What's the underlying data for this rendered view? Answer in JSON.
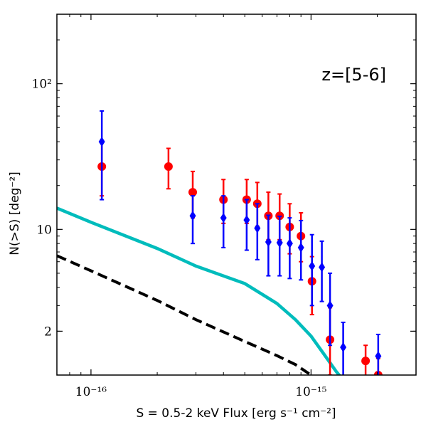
{
  "chart_data": {
    "type": "scatter",
    "title": "",
    "annotation": "z=[5-6]",
    "xlabel": "S = 0.5-2 keV Flux [erg s⁻¹ cm⁻²]",
    "ylabel": "N(>S) [deg⁻²]",
    "xscale": "log",
    "yscale": "log",
    "xlim": [
      7e-17,
      3e-15
    ],
    "ylim": [
      1,
      300
    ],
    "x_ticks": [
      {
        "value": 1e-16,
        "label": "10⁻¹⁶"
      },
      {
        "value": 1e-15,
        "label": "10⁻¹⁵"
      }
    ],
    "y_ticks": [
      {
        "value": 2,
        "label": "2"
      },
      {
        "value": 10,
        "label": "10"
      },
      {
        "value": 100,
        "label": "10²"
      }
    ],
    "series": [
      {
        "marker": "circle",
        "color": "#ff0000",
        "points": [
          {
            "x": 1.12e-16,
            "y": 27,
            "lo": 17,
            "hi": 40
          },
          {
            "x": 2.25e-16,
            "y": 27,
            "lo": 19,
            "hi": 36
          },
          {
            "x": 2.9e-16,
            "y": 18,
            "lo": 12,
            "hi": 25
          },
          {
            "x": 4e-16,
            "y": 16,
            "lo": 11,
            "hi": 22
          },
          {
            "x": 5.1e-16,
            "y": 16,
            "lo": 11,
            "hi": 22
          },
          {
            "x": 5.7e-16,
            "y": 15,
            "lo": 10.5,
            "hi": 21
          },
          {
            "x": 6.4e-16,
            "y": 12.4,
            "lo": 8.5,
            "hi": 18
          },
          {
            "x": 7.2e-16,
            "y": 12.4,
            "lo": 8.5,
            "hi": 17.5
          },
          {
            "x": 8e-16,
            "y": 10.4,
            "lo": 6.8,
            "hi": 15
          },
          {
            "x": 9e-16,
            "y": 9.0,
            "lo": 6.0,
            "hi": 13
          },
          {
            "x": 1.01e-15,
            "y": 4.4,
            "lo": 2.6,
            "hi": 6.5
          },
          {
            "x": 1.22e-15,
            "y": 1.75,
            "lo": 1.0,
            "hi": 2.9
          },
          {
            "x": 1.77e-15,
            "y": 1.25,
            "lo": 0.8,
            "hi": 1.6
          },
          {
            "x": 2.02e-15,
            "y": 1.0,
            "lo": 0.7,
            "hi": 1.3
          }
        ]
      },
      {
        "marker": "diamond",
        "color": "#0000ff",
        "points": [
          {
            "x": 1.12e-16,
            "y": 40,
            "lo": 16,
            "hi": 65
          },
          {
            "x": 2.9e-16,
            "y": 12.4,
            "lo": 8,
            "hi": 17
          },
          {
            "x": 4e-16,
            "y": 12,
            "lo": 7.5,
            "hi": 17
          },
          {
            "x": 5.1e-16,
            "y": 11.6,
            "lo": 7.2,
            "hi": 16
          },
          {
            "x": 5.7e-16,
            "y": 10.2,
            "lo": 6.2,
            "hi": 15
          },
          {
            "x": 6.4e-16,
            "y": 8.2,
            "lo": 4.8,
            "hi": 12.5
          },
          {
            "x": 7.2e-16,
            "y": 8.1,
            "lo": 4.8,
            "hi": 12.3
          },
          {
            "x": 8e-16,
            "y": 8.0,
            "lo": 4.6,
            "hi": 12
          },
          {
            "x": 9e-16,
            "y": 7.5,
            "lo": 4.5,
            "hi": 11.5
          },
          {
            "x": 1.01e-15,
            "y": 5.6,
            "lo": 3.0,
            "hi": 9.2
          },
          {
            "x": 1.12e-15,
            "y": 5.5,
            "lo": 3.2,
            "hi": 8.3
          },
          {
            "x": 1.22e-15,
            "y": 3.0,
            "lo": 1.6,
            "hi": 5.0
          },
          {
            "x": 1.4e-15,
            "y": 1.55,
            "lo": 0.6,
            "hi": 2.3
          },
          {
            "x": 2.02e-15,
            "y": 1.35,
            "lo": 0.7,
            "hi": 1.9
          }
        ]
      },
      {
        "type": "line",
        "style": "solid",
        "color": "#00bcbc",
        "points": [
          {
            "x": 7e-17,
            "y": 14
          },
          {
            "x": 1e-16,
            "y": 11.2
          },
          {
            "x": 2e-16,
            "y": 7.4
          },
          {
            "x": 3e-16,
            "y": 5.6
          },
          {
            "x": 5e-16,
            "y": 4.25
          },
          {
            "x": 7e-16,
            "y": 3.1
          },
          {
            "x": 8.5e-16,
            "y": 2.4
          },
          {
            "x": 1e-15,
            "y": 1.85
          },
          {
            "x": 1.15e-15,
            "y": 1.38
          },
          {
            "x": 1.3e-15,
            "y": 1.06
          },
          {
            "x": 1.38e-15,
            "y": 0.95
          }
        ]
      },
      {
        "type": "line",
        "style": "dashed",
        "color": "#000000",
        "points": [
          {
            "x": 7e-17,
            "y": 6.6
          },
          {
            "x": 1e-16,
            "y": 5.2
          },
          {
            "x": 2e-16,
            "y": 3.25
          },
          {
            "x": 3e-16,
            "y": 2.4
          },
          {
            "x": 5e-16,
            "y": 1.7
          },
          {
            "x": 7e-16,
            "y": 1.36
          },
          {
            "x": 8.5e-16,
            "y": 1.18
          },
          {
            "x": 1.02e-15,
            "y": 0.98
          }
        ]
      }
    ]
  }
}
